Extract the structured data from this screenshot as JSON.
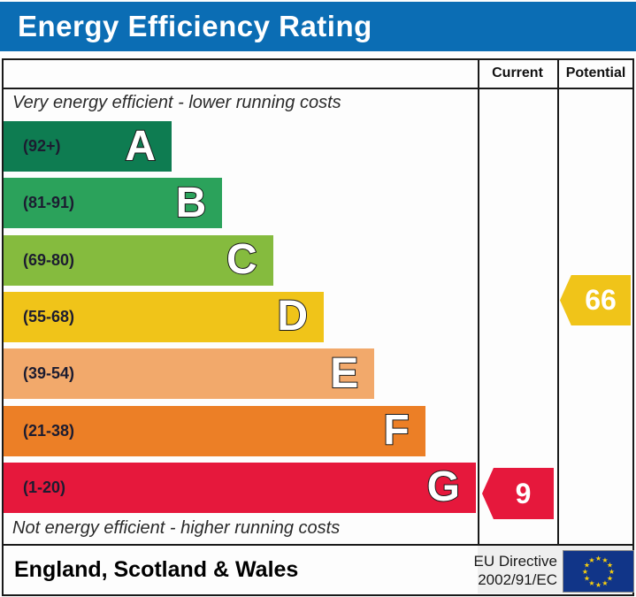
{
  "header": {
    "title": "Energy Efficiency Rating",
    "bg": "#0b6db4"
  },
  "columns": {
    "current": "Current",
    "potential": "Potential"
  },
  "captions": {
    "top": "Very energy efficient - lower running costs",
    "bottom": "Not energy efficient - higher running costs"
  },
  "bands": [
    {
      "letter": "A",
      "label": "(92+)",
      "color": "#0e7c51"
    },
    {
      "letter": "B",
      "label": "(81-91)",
      "color": "#2ba25b"
    },
    {
      "letter": "C",
      "label": "(69-80)",
      "color": "#85bb3e"
    },
    {
      "letter": "D",
      "label": "(55-68)",
      "color": "#f0c419"
    },
    {
      "letter": "E",
      "label": "(39-54)",
      "color": "#f2a96b"
    },
    {
      "letter": "F",
      "label": "(21-38)",
      "color": "#ec7f26"
    },
    {
      "letter": "G",
      "label": "(1-20)",
      "color": "#e6183c"
    }
  ],
  "current": {
    "value": "9",
    "color": "#e6183c"
  },
  "potential": {
    "value": "66",
    "color": "#f0c419"
  },
  "footer": {
    "region": "England, Scotland & Wales",
    "directive_line1": "EU Directive",
    "directive_line2": "2002/91/EC",
    "eu_flag": {
      "bg": "#113588",
      "star_color": "#f8cf0e"
    }
  },
  "chart_data": {
    "type": "bar",
    "title": "Energy Efficiency Rating",
    "categories": [
      "A",
      "B",
      "C",
      "D",
      "E",
      "F",
      "G"
    ],
    "band_ranges": [
      "92+",
      "81-91",
      "69-80",
      "55-68",
      "39-54",
      "21-38",
      "1-20"
    ],
    "band_colors": [
      "#0e7c51",
      "#2ba25b",
      "#85bb3e",
      "#f0c419",
      "#f2a96b",
      "#ec7f26",
      "#e6183c"
    ],
    "bar_relative_widths": [
      0.36,
      0.47,
      0.58,
      0.68,
      0.79,
      0.9,
      1.0
    ],
    "current": {
      "value": 9,
      "band": "G"
    },
    "potential": {
      "value": 66,
      "band": "D"
    },
    "annotations": [
      "Very energy efficient - lower running costs",
      "Not energy efficient - higher running costs"
    ],
    "legend_columns": [
      "Current",
      "Potential"
    ],
    "footer_text": "England, Scotland & Wales",
    "directive": "EU Directive 2002/91/EC"
  }
}
